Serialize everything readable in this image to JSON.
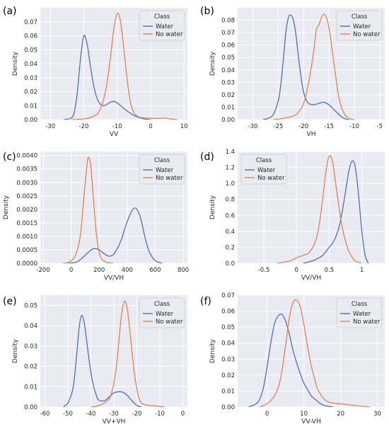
{
  "colors": {
    "water": "#4c72b0",
    "no_water": "#dd8452",
    "panel_bg": "#eaeaf2",
    "grid": "#ffffff"
  },
  "chart_data": [
    {
      "id": "a",
      "panel_label": "(a)",
      "type": "line",
      "xlabel": "VV",
      "ylabel": "Density",
      "xlim": [
        -33,
        11
      ],
      "ylim": [
        0,
        0.08
      ],
      "xticks": [
        -30,
        -20,
        -10,
        0,
        10
      ],
      "yticks": [
        0.0,
        0.01,
        0.02,
        0.03,
        0.04,
        0.05,
        0.06,
        0.07
      ],
      "ytick_labels": [
        "0.00",
        "0.01",
        "0.02",
        "0.03",
        "0.04",
        "0.05",
        "0.06",
        "0.07"
      ],
      "legend": {
        "title": "Class",
        "entries": [
          "Water",
          "No water"
        ],
        "position": "top-right"
      },
      "series": [
        {
          "name": "Water",
          "x": [
            -26,
            -24,
            -23,
            -22,
            -21,
            -20,
            -19,
            -18,
            -17,
            -16,
            -15,
            -14,
            -13,
            -12,
            -11,
            -10,
            -9,
            -8,
            -7,
            -6,
            -5,
            -4,
            -2,
            0
          ],
          "y": [
            0,
            0.001,
            0.004,
            0.018,
            0.043,
            0.06,
            0.054,
            0.038,
            0.024,
            0.015,
            0.011,
            0.01,
            0.011,
            0.0125,
            0.013,
            0.012,
            0.01,
            0.008,
            0.006,
            0.0045,
            0.003,
            0.002,
            0.0005,
            0
          ]
        },
        {
          "name": "No water",
          "x": [
            -24,
            -20,
            -18,
            -16,
            -15,
            -14,
            -13,
            -12,
            -11,
            -10,
            -9,
            -8,
            -7,
            -6,
            -5,
            -4,
            -3,
            -2,
            0,
            2,
            4,
            6,
            8
          ],
          "y": [
            0,
            0.0005,
            0.0015,
            0.004,
            0.008,
            0.015,
            0.027,
            0.045,
            0.065,
            0.076,
            0.07,
            0.05,
            0.028,
            0.012,
            0.005,
            0.0025,
            0.0015,
            0.0012,
            0.001,
            0.0008,
            0.001,
            0.0005,
            0
          ]
        }
      ]
    },
    {
      "id": "b",
      "panel_label": "(b)",
      "type": "line",
      "xlabel": "VH",
      "ylabel": "Density",
      "xlim": [
        -33,
        -4
      ],
      "ylim": [
        0,
        0.09
      ],
      "xticks": [
        -30,
        -25,
        -20,
        -15,
        -10,
        -5
      ],
      "yticks": [
        0.0,
        0.01,
        0.02,
        0.03,
        0.04,
        0.05,
        0.06,
        0.07,
        0.08
      ],
      "ytick_labels": [
        "0.00",
        "0.01",
        "0.02",
        "0.03",
        "0.04",
        "0.05",
        "0.06",
        "0.07",
        "0.08"
      ],
      "legend": {
        "title": "Class",
        "entries": [
          "Water",
          "No water"
        ],
        "position": "top-right"
      },
      "series": [
        {
          "name": "Water",
          "x": [
            -28,
            -27,
            -26,
            -25,
            -24.5,
            -24,
            -23.5,
            -23,
            -22.5,
            -22,
            -21.5,
            -21,
            -20.5,
            -20,
            -19.5,
            -19,
            -18,
            -17,
            -16,
            -15,
            -14,
            -13,
            -12,
            -11
          ],
          "y": [
            0,
            0.001,
            0.004,
            0.015,
            0.028,
            0.048,
            0.07,
            0.082,
            0.084,
            0.08,
            0.068,
            0.05,
            0.034,
            0.022,
            0.016,
            0.013,
            0.012,
            0.013,
            0.014,
            0.012,
            0.008,
            0.004,
            0.001,
            0
          ]
        },
        {
          "name": "No water",
          "x": [
            -26,
            -24,
            -22,
            -21,
            -20,
            -19,
            -18,
            -17.5,
            -17,
            -16.5,
            -16,
            -15.5,
            -15,
            -14.5,
            -14,
            -13.5,
            -13,
            -12,
            -11,
            -10
          ],
          "y": [
            0,
            0.001,
            0.003,
            0.006,
            0.013,
            0.03,
            0.055,
            0.072,
            0.076,
            0.082,
            0.085,
            0.082,
            0.074,
            0.06,
            0.045,
            0.03,
            0.017,
            0.005,
            0.001,
            0
          ]
        }
      ]
    },
    {
      "id": "c",
      "panel_label": "(c)",
      "type": "line",
      "xlabel": "VV/VH",
      "ylabel": "Density",
      "xlim": [
        -220,
        830
      ],
      "ylim": [
        0,
        0.00415
      ],
      "xticks": [
        -200,
        0,
        200,
        400,
        600,
        800
      ],
      "yticks": [
        0,
        0.0005,
        0.001,
        0.0015,
        0.002,
        0.0025,
        0.003,
        0.0035,
        0.004
      ],
      "ytick_labels": [
        "0.0000",
        "0.0005",
        "0.0010",
        "0.0015",
        "0.0020",
        "0.0025",
        "0.0030",
        "0.0035",
        "0.0040"
      ],
      "legend": {
        "title": "Class",
        "entries": [
          "Water",
          "No water"
        ],
        "position": "top-right"
      },
      "series": [
        {
          "name": "Water",
          "x": [
            -20,
            40,
            80,
            120,
            150,
            170,
            200,
            230,
            260,
            280,
            300,
            330,
            360,
            390,
            420,
            440,
            460,
            480,
            500,
            530,
            560,
            600,
            650
          ],
          "y": [
            0,
            5e-05,
            0.0002,
            0.0004,
            0.00052,
            0.00055,
            0.0005,
            0.00038,
            0.00028,
            0.00027,
            0.00032,
            0.00055,
            0.0009,
            0.0014,
            0.0018,
            0.002,
            0.00205,
            0.0019,
            0.0016,
            0.0009,
            0.0004,
            0.0001,
            0
          ]
        },
        {
          "name": "No water",
          "x": [
            -60,
            -20,
            20,
            50,
            70,
            90,
            110,
            120,
            130,
            140,
            150,
            160,
            170,
            180,
            200,
            220,
            250,
            300
          ],
          "y": [
            0,
            3e-05,
            0.0002,
            0.0006,
            0.0012,
            0.0024,
            0.0035,
            0.0039,
            0.0039,
            0.0036,
            0.003,
            0.0023,
            0.0017,
            0.0011,
            0.0004,
            0.00015,
            4e-05,
            0
          ]
        }
      ]
    },
    {
      "id": "d",
      "panel_label": "(d)",
      "type": "line",
      "xlabel": "VV/VH",
      "ylabel": "Density",
      "xlim": [
        -0.9,
        1.35
      ],
      "ylim": [
        0,
        1.4
      ],
      "xticks": [
        -0.5,
        0.0,
        0.5,
        1.0
      ],
      "yticks": [
        0.0,
        0.2,
        0.4,
        0.6,
        0.8,
        1.0,
        1.2,
        1.4
      ],
      "ytick_labels": [
        "0.0",
        "0.2",
        "0.4",
        "0.6",
        "0.8",
        "1.0",
        "1.2",
        "1.4"
      ],
      "legend": {
        "title": "Class",
        "entries": [
          "Water",
          "No water"
        ],
        "position": "top-left"
      },
      "series": [
        {
          "name": "Water",
          "x": [
            0.1,
            0.2,
            0.3,
            0.4,
            0.5,
            0.55,
            0.6,
            0.65,
            0.7,
            0.75,
            0.8,
            0.85,
            0.9,
            0.95,
            1.0,
            1.05,
            1.1
          ],
          "y": [
            0,
            0.02,
            0.05,
            0.1,
            0.2,
            0.25,
            0.33,
            0.45,
            0.65,
            0.9,
            1.15,
            1.28,
            1.2,
            0.85,
            0.4,
            0.1,
            0
          ]
        },
        {
          "name": "No water",
          "x": [
            -0.3,
            -0.1,
            0.0,
            0.1,
            0.2,
            0.3,
            0.35,
            0.4,
            0.45,
            0.5,
            0.55,
            0.6,
            0.65,
            0.7,
            0.75,
            0.8,
            0.85,
            0.9,
            1.0
          ],
          "y": [
            0,
            0.03,
            0.07,
            0.1,
            0.14,
            0.3,
            0.5,
            0.8,
            1.15,
            1.34,
            1.28,
            1.0,
            0.7,
            0.45,
            0.28,
            0.15,
            0.08,
            0.03,
            0
          ]
        }
      ]
    },
    {
      "id": "e",
      "panel_label": "(e)",
      "type": "line",
      "xlabel": "VV+VH",
      "ylabel": "Density",
      "xlim": [
        -62,
        2
      ],
      "ylim": [
        0,
        0.055
      ],
      "xticks": [
        -60,
        -50,
        -40,
        -30,
        -20,
        -10,
        0
      ],
      "yticks": [
        0.0,
        0.01,
        0.02,
        0.03,
        0.04,
        0.05
      ],
      "ytick_labels": [
        "0.00",
        "0.01",
        "0.02",
        "0.03",
        "0.04",
        "0.05"
      ],
      "legend": {
        "title": "Class",
        "entries": [
          "Water",
          "No water"
        ],
        "position": "top-right"
      },
      "series": [
        {
          "name": "Water",
          "x": [
            -52,
            -50,
            -48,
            -47,
            -46,
            -45,
            -44,
            -43,
            -42,
            -41,
            -40,
            -39,
            -38,
            -37,
            -36,
            -35,
            -34,
            -33,
            -32,
            -31,
            -30,
            -29,
            -28,
            -27,
            -26,
            -25,
            -24,
            -23,
            -22,
            -21,
            -20,
            -19,
            -18
          ],
          "y": [
            0,
            0.002,
            0.008,
            0.016,
            0.028,
            0.04,
            0.045,
            0.042,
            0.034,
            0.025,
            0.017,
            0.011,
            0.007,
            0.004,
            0.003,
            0.003,
            0.003,
            0.004,
            0.005,
            0.006,
            0.007,
            0.0073,
            0.0075,
            0.0075,
            0.0072,
            0.0065,
            0.0055,
            0.0042,
            0.003,
            0.0018,
            0.0008,
            0.0003,
            0
          ]
        },
        {
          "name": "No water",
          "x": [
            -40,
            -38,
            -36,
            -34,
            -32,
            -31,
            -30,
            -29,
            -28,
            -27,
            -26,
            -25,
            -24,
            -23,
            -22,
            -21,
            -20,
            -19,
            -18,
            -17,
            -15,
            -12,
            -10,
            -8
          ],
          "y": [
            0,
            0.0003,
            0.001,
            0.002,
            0.004,
            0.007,
            0.012,
            0.019,
            0.03,
            0.042,
            0.05,
            0.052,
            0.047,
            0.037,
            0.026,
            0.016,
            0.009,
            0.004,
            0.002,
            0.0013,
            0.0008,
            0.0005,
            0.0003,
            0
          ]
        }
      ]
    },
    {
      "id": "f",
      "panel_label": "(f)",
      "type": "line",
      "xlabel": "VV-VH",
      "ylabel": "Density",
      "xlim": [
        -8,
        32
      ],
      "ylim": [
        0,
        0.07
      ],
      "xticks": [
        0,
        10,
        20,
        30
      ],
      "yticks": [
        0.0,
        0.01,
        0.02,
        0.03,
        0.04,
        0.05,
        0.06,
        0.07
      ],
      "ytick_labels": [
        "0.00",
        "0.01",
        "0.02",
        "0.03",
        "0.04",
        "0.05",
        "0.06",
        "0.07"
      ],
      "legend": {
        "title": "Class",
        "entries": [
          "Water",
          "No water"
        ],
        "position": "top-right"
      },
      "series": [
        {
          "name": "Water",
          "x": [
            -5,
            -3,
            -2,
            -1,
            0,
            1,
            2,
            3,
            4,
            5,
            6,
            7,
            8,
            9,
            10,
            11,
            12,
            13,
            14,
            15,
            16,
            18
          ],
          "y": [
            0,
            0.002,
            0.005,
            0.012,
            0.025,
            0.04,
            0.052,
            0.057,
            0.058,
            0.054,
            0.046,
            0.036,
            0.028,
            0.021,
            0.015,
            0.011,
            0.007,
            0.005,
            0.003,
            0.0015,
            0.0007,
            0
          ]
        },
        {
          "name": "No water",
          "x": [
            -2,
            0,
            1,
            2,
            3,
            4,
            5,
            6,
            7,
            8,
            9,
            10,
            11,
            12,
            13,
            14,
            16,
            18,
            20,
            22,
            24,
            26,
            28
          ],
          "y": [
            0,
            0.002,
            0.004,
            0.007,
            0.012,
            0.022,
            0.038,
            0.055,
            0.065,
            0.067,
            0.063,
            0.052,
            0.038,
            0.026,
            0.017,
            0.01,
            0.004,
            0.0025,
            0.002,
            0.0015,
            0.001,
            0.0005,
            0
          ]
        }
      ]
    }
  ]
}
